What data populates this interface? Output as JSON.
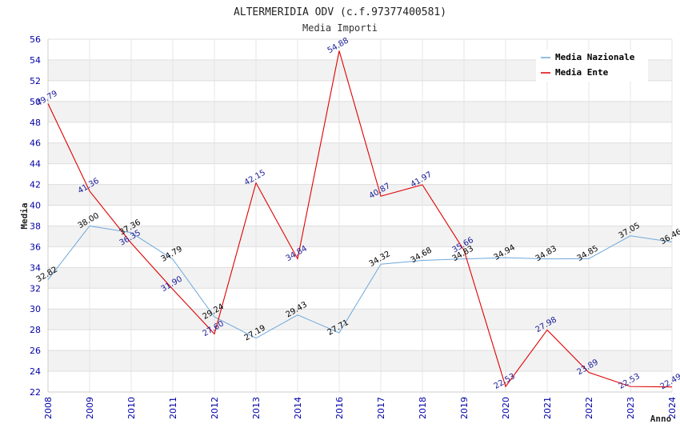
{
  "chart_data": {
    "type": "line",
    "title": "ALTERMERIDIA ODV (c.f.97377400581)",
    "subtitle": "Media Importi",
    "xlabel": "Anno",
    "ylabel": "Media",
    "ylim": [
      22,
      56
    ],
    "yticks": [
      22,
      24,
      26,
      28,
      30,
      32,
      34,
      36,
      38,
      40,
      42,
      44,
      46,
      48,
      50,
      52,
      54,
      56
    ],
    "ytick_labels": [
      "22",
      "24",
      "26",
      "28",
      "30",
      "32",
      "34",
      "36",
      "38",
      "40",
      "42",
      "44",
      "46",
      "48",
      "50",
      "52",
      "54",
      "56"
    ],
    "categories": [
      "2008",
      "2009",
      "2010",
      "2011",
      "2012",
      "2013",
      "2014",
      "2016",
      "2017",
      "2018",
      "2019",
      "2020",
      "2021",
      "2022",
      "2023",
      "2024"
    ],
    "grid": true,
    "legend_position": "top-right",
    "series": [
      {
        "name": "Media Nazionale",
        "color": "#6fa8dc",
        "values": [
          32.82,
          38.0,
          37.36,
          34.79,
          29.24,
          27.19,
          29.43,
          27.71,
          34.32,
          34.68,
          34.83,
          34.94,
          34.83,
          34.85,
          37.05,
          36.46
        ],
        "labels": [
          "32.82",
          "38.00",
          "37.36",
          "34.79",
          "29.24",
          "27.19",
          "29.43",
          "27.71",
          "34.32",
          "34.68",
          "34.83",
          "34.94",
          "34.83",
          "34.85",
          "37.05",
          "36.46"
        ]
      },
      {
        "name": "Media Ente",
        "color": "#e00000",
        "values": [
          49.79,
          41.36,
          36.35,
          31.9,
          27.6,
          42.15,
          34.84,
          54.88,
          40.87,
          41.97,
          35.66,
          22.53,
          27.98,
          23.89,
          22.53,
          22.49
        ],
        "labels": [
          "49.79",
          "41.36",
          "36.35",
          "31.90",
          "27.60",
          "42.15",
          "34.84",
          "54.88",
          "40.87",
          "41.97",
          "35.66",
          "22.53",
          "27.98",
          "23.89",
          "22.53",
          "22.49"
        ]
      }
    ]
  }
}
